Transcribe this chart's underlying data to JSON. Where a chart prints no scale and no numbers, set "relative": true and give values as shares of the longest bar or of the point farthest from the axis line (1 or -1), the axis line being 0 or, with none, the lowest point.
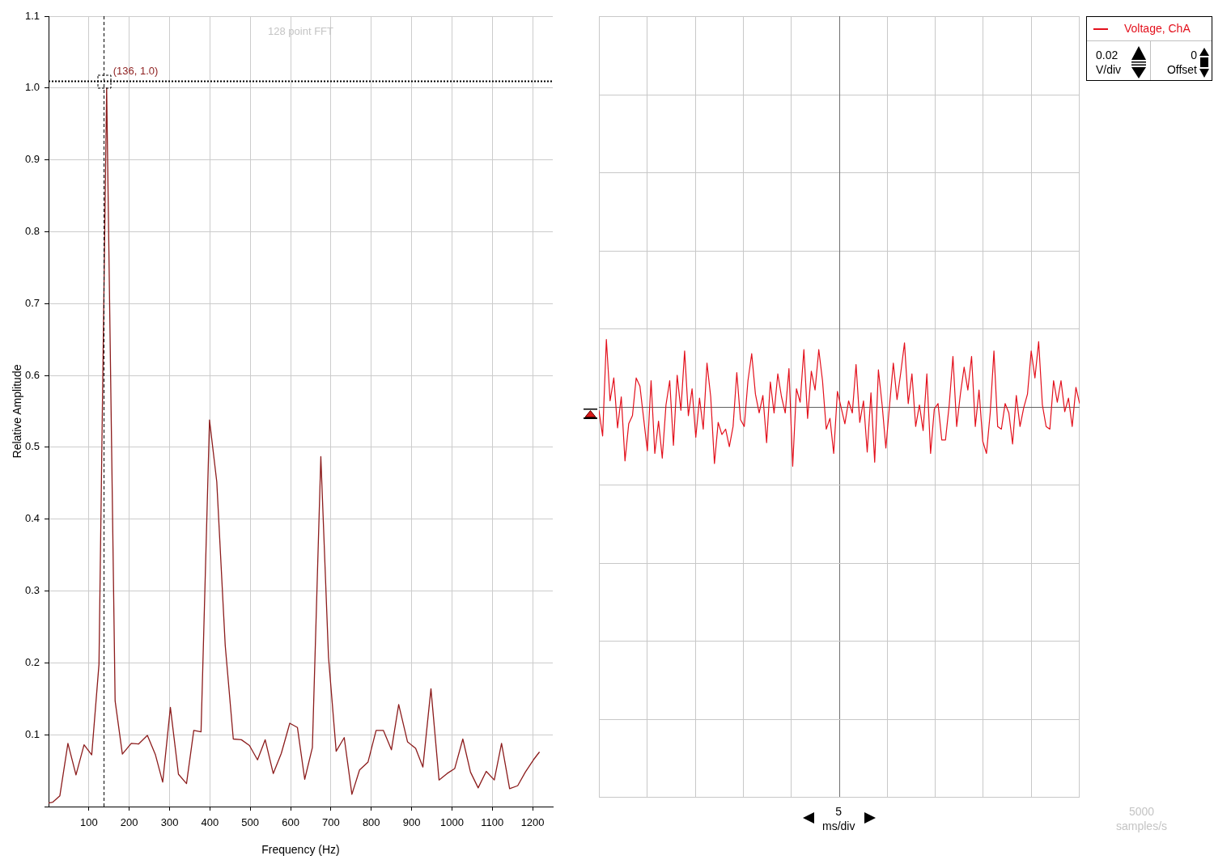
{
  "chart_data": [
    {
      "type": "line",
      "title": "128 point FFT",
      "xlabel": "Frequency (Hz)",
      "ylabel": "Relative Amplitude",
      "color": "#8c1c1c",
      "x": [
        0,
        10,
        28,
        48,
        68,
        88,
        107,
        125,
        144,
        165,
        183,
        205,
        223,
        245,
        265,
        283,
        302,
        322,
        342,
        360,
        378,
        399,
        417,
        438,
        458,
        478,
        498,
        518,
        537,
        557,
        577,
        598,
        617,
        635,
        654,
        675,
        694,
        713,
        733,
        752,
        771,
        792,
        812,
        830,
        850,
        868,
        890,
        910,
        928,
        948,
        968,
        988,
        1007,
        1027,
        1046,
        1065,
        1085,
        1105,
        1123,
        1143,
        1163,
        1182,
        1202,
        1217
      ],
      "values": [
        0.005,
        0.006,
        0.015,
        0.088,
        0.044,
        0.086,
        0.072,
        0.198,
        1.0,
        0.147,
        0.073,
        0.088,
        0.087,
        0.099,
        0.072,
        0.034,
        0.138,
        0.045,
        0.032,
        0.106,
        0.104,
        0.538,
        0.452,
        0.224,
        0.094,
        0.093,
        0.085,
        0.065,
        0.093,
        0.046,
        0.074,
        0.116,
        0.11,
        0.038,
        0.082,
        0.487,
        0.208,
        0.077,
        0.096,
        0.017,
        0.051,
        0.062,
        0.106,
        0.106,
        0.079,
        0.142,
        0.09,
        0.081,
        0.055,
        0.164,
        0.037,
        0.046,
        0.053,
        0.094,
        0.048,
        0.026,
        0.049,
        0.037,
        0.088,
        0.025,
        0.029,
        0.048,
        0.065,
        0.076
      ],
      "xlim": [
        0,
        1250
      ],
      "xticks": [
        100,
        200,
        300,
        400,
        500,
        600,
        700,
        800,
        900,
        1000,
        1100,
        1200
      ],
      "ylim": [
        0,
        1.1
      ],
      "yticks": [
        {
          "value": 0,
          "label": null
        },
        0.1,
        0.2,
        0.3,
        0.4,
        0.5,
        0.6,
        0.7,
        0.8,
        0.9,
        {
          "value": 1,
          "label": "1.0"
        },
        1.1
      ],
      "grid": true,
      "marker": "none",
      "line_style": "solid",
      "ref_lines": [
        {
          "axis": "x",
          "value": 136,
          "color": "#000000",
          "line_style": "dashed"
        },
        {
          "axis": "y",
          "value": 1.01,
          "color": "#000000",
          "line_style": "dotted"
        }
      ],
      "annotations": [
        {
          "text": "(136, 1.0)",
          "x": 136,
          "y": 1.0
        }
      ]
    },
    {
      "type": "line",
      "relative": true,
      "categories": [
        null,
        null,
        null,
        null,
        null,
        null,
        null,
        null,
        null,
        null,
        null,
        null,
        null,
        null,
        null,
        null,
        null,
        null,
        null,
        null,
        null,
        null,
        null,
        null,
        null,
        null,
        null,
        null,
        null,
        null,
        null,
        null,
        null,
        null,
        null,
        null,
        null,
        null,
        null,
        null,
        null,
        null,
        null,
        null,
        null,
        null,
        null,
        null,
        null,
        null,
        null,
        null,
        null,
        null,
        null,
        null,
        null,
        null,
        null,
        null,
        null,
        null,
        null,
        null,
        null,
        null,
        null,
        null,
        null,
        null,
        null,
        null,
        null,
        null,
        null,
        null,
        null,
        null,
        null,
        null,
        null,
        null,
        null,
        null,
        null,
        null,
        null,
        null,
        null,
        null,
        null,
        null,
        null,
        null,
        null,
        null,
        null,
        null,
        null,
        null,
        null,
        null,
        null,
        null,
        null,
        null,
        null,
        null,
        null,
        null,
        null,
        null,
        null,
        null,
        null,
        null,
        null,
        null,
        null,
        null,
        null,
        null,
        null,
        null,
        null,
        null,
        null,
        null,
        null,
        null
      ],
      "series": [
        {
          "name": "Voltage, ChA",
          "color": "#e3101c",
          "values": [
            -0.05,
            -0.43,
            1.0,
            0.09,
            0.43,
            -0.31,
            0.15,
            -0.8,
            -0.25,
            -0.13,
            0.43,
            0.31,
            -0.17,
            -0.65,
            0.39,
            -0.69,
            -0.21,
            -0.76,
            0.03,
            0.39,
            -0.57,
            0.47,
            -0.05,
            0.83,
            -0.13,
            0.27,
            -0.45,
            0.13,
            -0.33,
            0.65,
            0.15,
            -0.84,
            -0.23,
            -0.41,
            -0.33,
            -0.59,
            -0.29,
            0.51,
            -0.19,
            -0.29,
            0.39,
            0.79,
            0.19,
            -0.09,
            0.17,
            -0.53,
            0.37,
            -0.09,
            0.49,
            0.15,
            -0.09,
            0.57,
            -0.88,
            0.27,
            0.07,
            0.85,
            -0.17,
            0.53,
            0.25,
            0.85,
            0.39,
            -0.33,
            -0.17,
            -0.69,
            0.23,
            -0.01,
            -0.25,
            0.09,
            -0.09,
            0.63,
            -0.23,
            0.09,
            -0.67,
            0.21,
            -0.82,
            0.55,
            0.03,
            -0.61,
            0.03,
            0.65,
            0.11,
            0.51,
            0.95,
            0.05,
            0.49,
            -0.29,
            0.03,
            -0.35,
            0.49,
            -0.69,
            -0.03,
            0.05,
            -0.49,
            -0.49,
            0.03,
            0.75,
            -0.29,
            0.19,
            0.59,
            0.25,
            0.75,
            -0.29,
            0.25,
            -0.51,
            -0.69,
            -0.09,
            0.83,
            -0.29,
            -0.33,
            0.05,
            -0.09,
            -0.55,
            0.17,
            -0.29,
            -0.01,
            0.19,
            0.83,
            0.43,
            0.97,
            0.03,
            -0.29,
            -0.33,
            0.39,
            0.07,
            0.39,
            -0.07,
            0.13,
            -0.29,
            0.29,
            0.05
          ]
        }
      ],
      "grid": true,
      "legend": "top right",
      "marker": "none",
      "line_style": "solid",
      "annotations": [
        "0.02 V/div",
        "0 Offset",
        "5 ms/div",
        "5000 samples/s"
      ]
    }
  ]
}
